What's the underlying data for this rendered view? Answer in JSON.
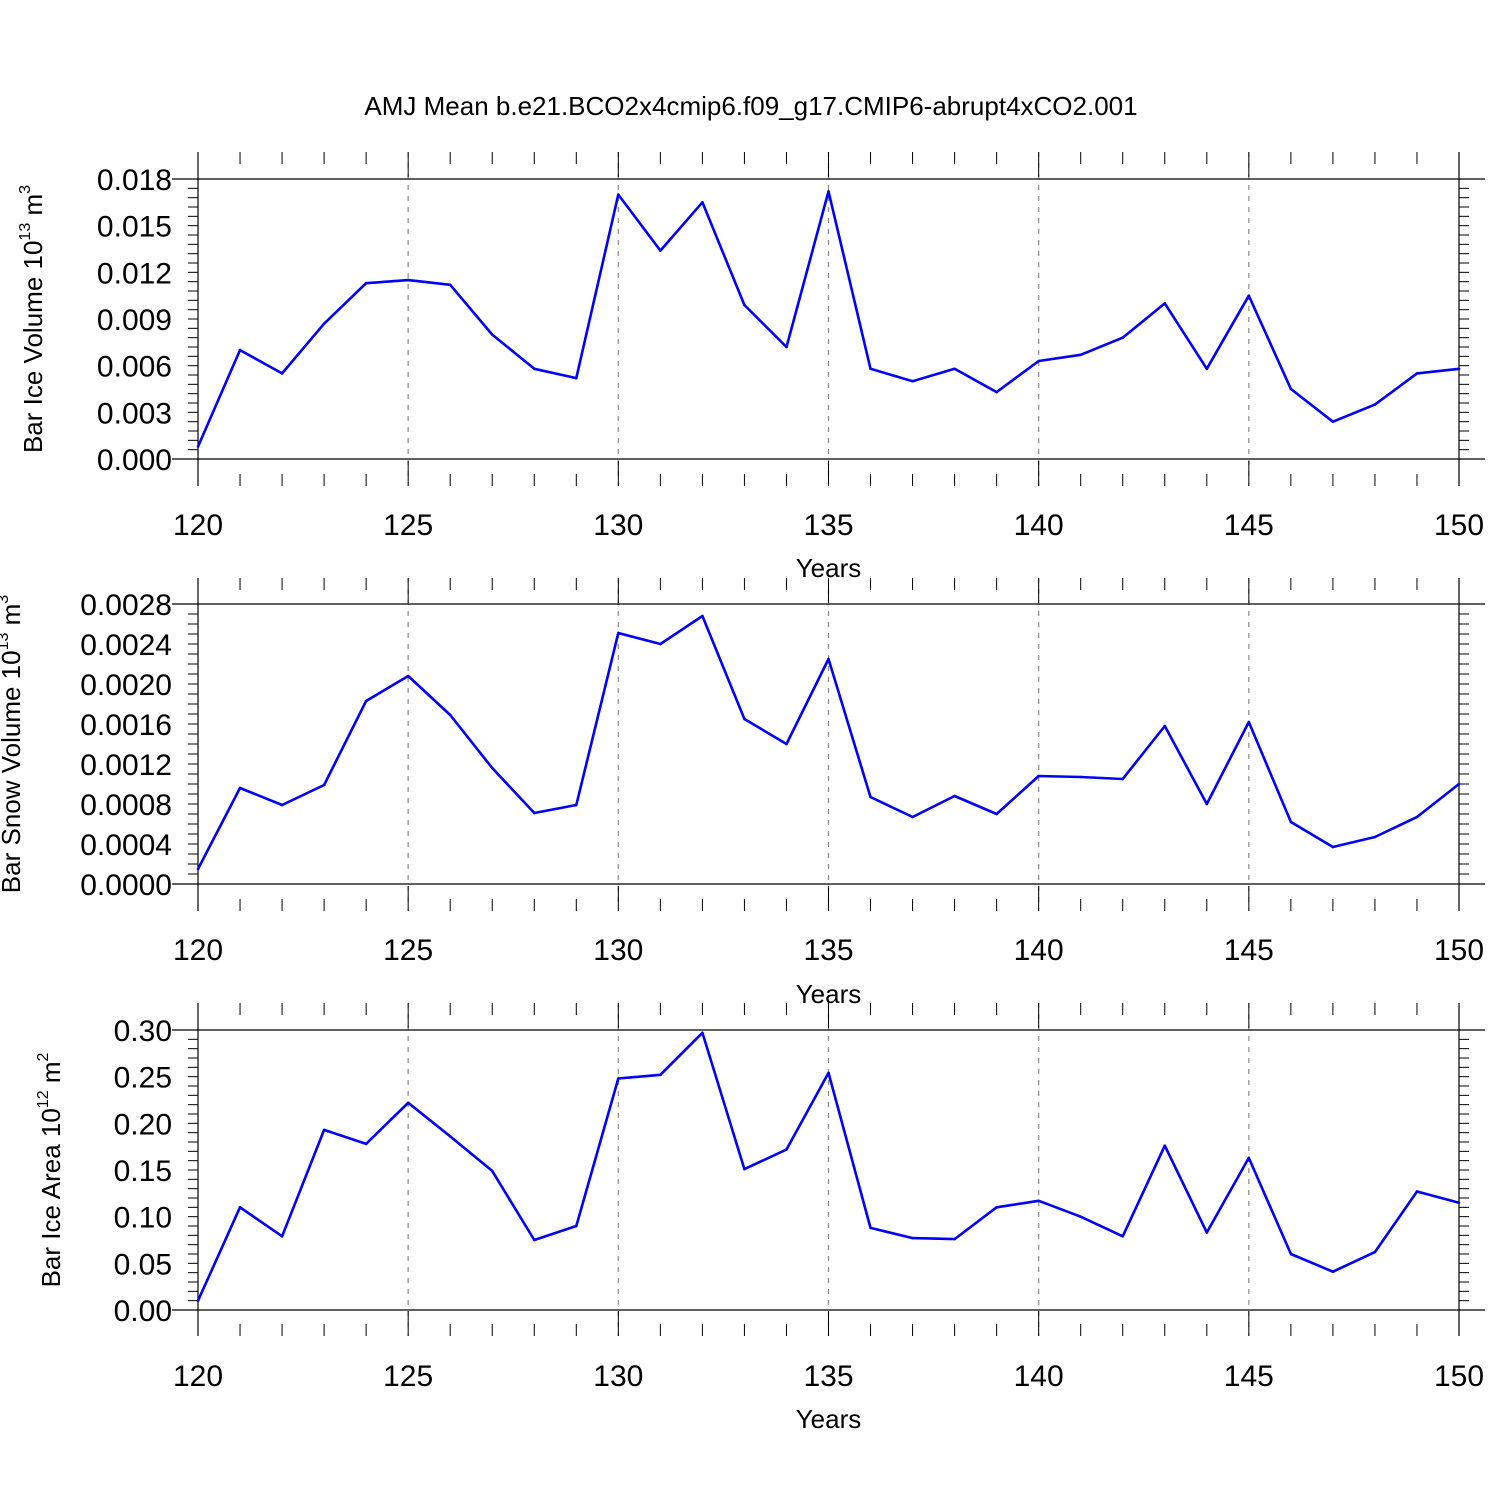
{
  "title": "AMJ Mean b.e21.BCO2x4cmip6.f09_g17.CMIP6-abrupt4xCO2.001",
  "chart_data": [
    {
      "type": "line",
      "xlabel": "Years",
      "ylabel": "Bar Ice Volume 10",
      "ylabel_exp": "13",
      "ylabel_unit": "m",
      "ylabel_unit_exp": "3",
      "xlim": [
        120,
        150
      ],
      "ylim": [
        0,
        0.018
      ],
      "x_ticks": [
        "120",
        "125",
        "130",
        "135",
        "140",
        "145",
        "150"
      ],
      "y_ticks": [
        "0.000",
        "0.003",
        "0.006",
        "0.009",
        "0.012",
        "0.015",
        "0.018"
      ],
      "y_tick_values": [
        0,
        0.003,
        0.006,
        0.009,
        0.012,
        0.015,
        0.018
      ],
      "y_minor_step": 0.0006,
      "grid_x_dashed": [
        125,
        130,
        135,
        140,
        145
      ],
      "line_color": "#0000ff",
      "x": [
        120,
        121,
        122,
        123,
        124,
        125,
        126,
        127,
        128,
        129,
        130,
        131,
        132,
        133,
        134,
        135,
        136,
        137,
        138,
        139,
        140,
        141,
        142,
        143,
        144,
        145,
        146,
        147,
        148,
        149,
        150
      ],
      "values": [
        0.0008,
        0.007,
        0.0055,
        0.0087,
        0.0113,
        0.0115,
        0.0112,
        0.008,
        0.0058,
        0.0052,
        0.017,
        0.0134,
        0.0165,
        0.0099,
        0.0072,
        0.0172,
        0.0058,
        0.005,
        0.0058,
        0.0043,
        0.0063,
        0.0067,
        0.0078,
        0.01,
        0.0058,
        0.0105,
        0.0045,
        0.0024,
        0.0035,
        0.0055,
        0.0058
      ]
    },
    {
      "type": "line",
      "xlabel": "Years",
      "ylabel": "Bar Snow Volume 10",
      "ylabel_exp": "13",
      "ylabel_unit": "m",
      "ylabel_unit_exp": "3",
      "xlim": [
        120,
        150
      ],
      "ylim": [
        0,
        0.0028
      ],
      "x_ticks": [
        "120",
        "125",
        "130",
        "135",
        "140",
        "145",
        "150"
      ],
      "y_ticks": [
        "0.0000",
        "0.0004",
        "0.0008",
        "0.0012",
        "0.0016",
        "0.0020",
        "0.0024",
        "0.0028"
      ],
      "y_tick_values": [
        0,
        0.0004,
        0.0008,
        0.0012,
        0.0016,
        0.002,
        0.0024,
        0.0028
      ],
      "y_minor_step": 0.0001,
      "grid_x_dashed": [
        125,
        130,
        135,
        140,
        145
      ],
      "line_color": "#0000ff",
      "x": [
        120,
        121,
        122,
        123,
        124,
        125,
        126,
        127,
        128,
        129,
        130,
        131,
        132,
        133,
        134,
        135,
        136,
        137,
        138,
        139,
        140,
        141,
        142,
        143,
        144,
        145,
        146,
        147,
        148,
        149,
        150
      ],
      "values": [
        0.00015,
        0.00096,
        0.00079,
        0.00099,
        0.00183,
        0.00208,
        0.00169,
        0.00116,
        0.00071,
        0.00079,
        0.00251,
        0.0024,
        0.00268,
        0.00165,
        0.0014,
        0.00225,
        0.00087,
        0.00067,
        0.00088,
        0.0007,
        0.00108,
        0.00107,
        0.00105,
        0.00158,
        0.0008,
        0.00162,
        0.00062,
        0.00037,
        0.00047,
        0.00067,
        0.001
      ]
    },
    {
      "type": "line",
      "xlabel": "Years",
      "ylabel": "Bar Ice Area 10",
      "ylabel_exp": "12",
      "ylabel_unit": "m",
      "ylabel_unit_exp": "2",
      "xlim": [
        120,
        150
      ],
      "ylim": [
        0,
        0.3
      ],
      "x_ticks": [
        "120",
        "125",
        "130",
        "135",
        "140",
        "145",
        "150"
      ],
      "y_ticks": [
        "0.00",
        "0.05",
        "0.10",
        "0.15",
        "0.20",
        "0.25",
        "0.30"
      ],
      "y_tick_values": [
        0,
        0.05,
        0.1,
        0.15,
        0.2,
        0.25,
        0.3
      ],
      "y_minor_step": 0.01,
      "grid_x_dashed": [
        125,
        130,
        135,
        140,
        145
      ],
      "line_color": "#0000ff",
      "x": [
        120,
        121,
        122,
        123,
        124,
        125,
        126,
        127,
        128,
        129,
        130,
        131,
        132,
        133,
        134,
        135,
        136,
        137,
        138,
        139,
        140,
        141,
        142,
        143,
        144,
        145,
        146,
        147,
        148,
        149,
        150
      ],
      "values": [
        0.01,
        0.11,
        0.079,
        0.193,
        0.178,
        0.222,
        0.186,
        0.149,
        0.075,
        0.09,
        0.248,
        0.252,
        0.297,
        0.151,
        0.172,
        0.254,
        0.088,
        0.077,
        0.076,
        0.11,
        0.117,
        0.1,
        0.079,
        0.176,
        0.083,
        0.163,
        0.06,
        0.041,
        0.062,
        0.127,
        0.115
      ]
    }
  ]
}
